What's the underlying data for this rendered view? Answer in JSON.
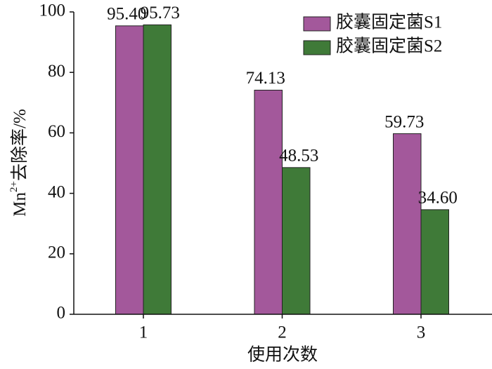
{
  "chart_data": {
    "type": "bar",
    "categories": [
      "1",
      "2",
      "3"
    ],
    "xlabel": "使用次数",
    "ylabel": {
      "base": "Mn",
      "sup": "2+",
      "rest": "去除率/%"
    },
    "series": [
      {
        "name": "胶囊固定菌S1",
        "color": "#a3589b",
        "values": [
          95.4,
          74.13,
          59.73
        ],
        "value_labels": [
          "95.40",
          "74.13",
          "59.73"
        ]
      },
      {
        "name": "胶囊固定菌S2",
        "color": "#3f7a38",
        "values": [
          95.73,
          48.53,
          34.6
        ],
        "value_labels": [
          "95.73",
          "48.53",
          "34.60"
        ]
      }
    ],
    "ylim": [
      0,
      100
    ],
    "yticks": [
      0,
      20,
      40,
      60,
      80,
      100
    ],
    "legend": "upper right"
  }
}
